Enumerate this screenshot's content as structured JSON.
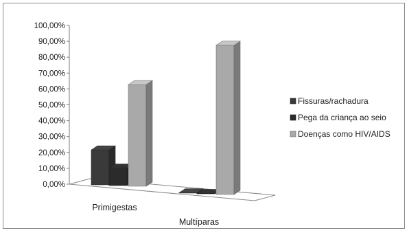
{
  "chart_data": {
    "type": "bar",
    "categories": [
      "Primigestas",
      "Multíparas"
    ],
    "series": [
      {
        "name": "Fissuras/rachadura",
        "values": [
          0.22,
          0.0
        ]
      },
      {
        "name": "Pega da criança ao seio",
        "values": [
          0.11,
          0.0
        ]
      },
      {
        "name": "Doenças como HIV/AIDS",
        "values": [
          0.64,
          0.94
        ]
      }
    ],
    "y_ticks": [
      "0,00%",
      "10,00%",
      "20,00%",
      "30,00%",
      "40,00%",
      "50,00%",
      "60,00%",
      "70,00%",
      "80,00%",
      "90,00%",
      "100,00%"
    ],
    "ylim": [
      0,
      1.0
    ],
    "legend_position": "right",
    "three_d": true,
    "colors": {
      "Fissuras/rachadura": "#3a3a3a",
      "Pega da criança ao seio": "#2b2b2b",
      "Doenças como HIV/AIDS": "#a9a9a9"
    }
  }
}
